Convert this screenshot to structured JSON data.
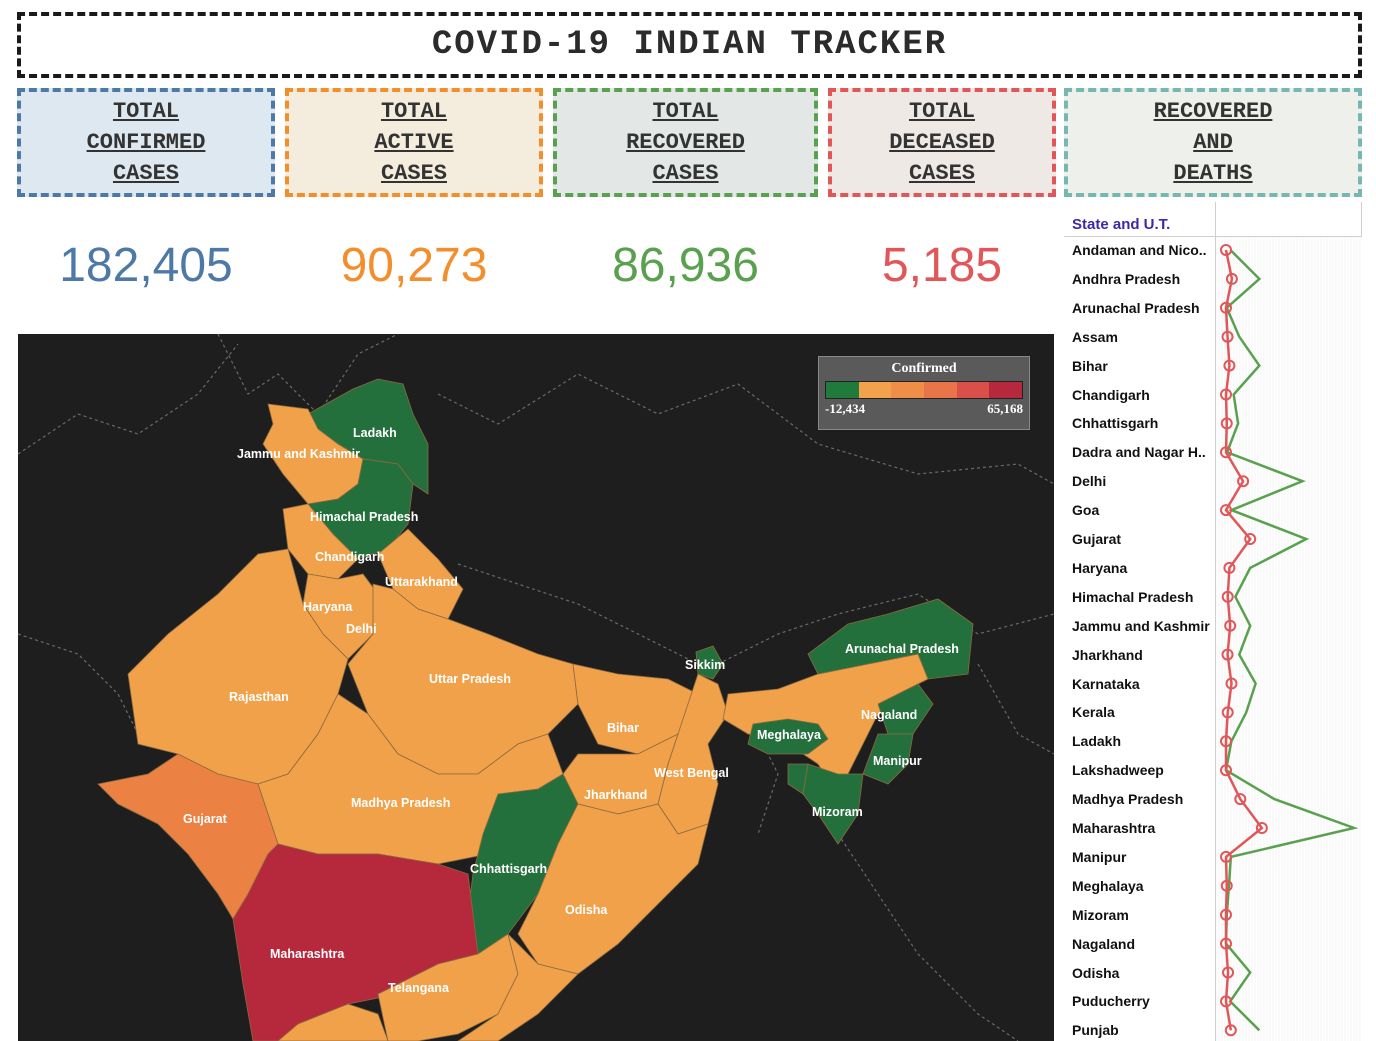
{
  "title": "COVID-19 INDIAN TRACKER",
  "kpis": {
    "confirmed": {
      "label": "TOTAL\nCONFIRMED\nCASES",
      "value": "182,405",
      "color": "#4e79a7"
    },
    "active": {
      "label": "TOTAL\nACTIVE\nCASES",
      "value": "90,273",
      "color": "#f28e2b"
    },
    "recovered": {
      "label": "TOTAL\nRECOVERED\nCASES",
      "value": "86,936",
      "color": "#59a14f"
    },
    "deceased": {
      "label": "TOTAL\nDECEASED\nCASES",
      "value": "5,185",
      "color": "#e15759"
    },
    "recovered_and_deaths": {
      "label": "RECOVERED\nAND\nDEATHS"
    }
  },
  "map": {
    "legend": {
      "title": "Confirmed",
      "min": "-12,434",
      "max": "65,168",
      "colors": [
        "#1f7a3c",
        "#f2a24a",
        "#ef8f47",
        "#e8744a",
        "#d9504a",
        "#b6283c"
      ]
    },
    "labels": {
      "ladakh": "Ladakh",
      "jk": "Jammu and Kashmir",
      "hp": "Himachal Pradesh",
      "chandigarh": "Chandigarh",
      "uttarakhand": "Uttarakhand",
      "haryana": "Haryana",
      "delhi": "Delhi",
      "up": "Uttar Pradesh",
      "rajasthan": "Rajasthan",
      "bihar": "Bihar",
      "sikkim": "Sikkim",
      "arunachal": "Arunachal Pradesh",
      "nagaland": "Nagaland",
      "meghalaya": "Meghalaya",
      "manipur": "Manipur",
      "mizoram": "Mizoram",
      "wb": "West Bengal",
      "jharkhand": "Jharkhand",
      "mp": "Madhya Pradesh",
      "gujarat": "Gujarat",
      "chhattisgarh": "Chhattisgarh",
      "odisha": "Odisha",
      "maharashtra": "Maharashtra",
      "telangana": "Telangana"
    }
  },
  "sidebar": {
    "header": "State and U.T.",
    "states": [
      "Andaman and Nico..",
      "Andhra Pradesh",
      "Arunachal Pradesh",
      "Assam",
      "Bihar",
      "Chandigarh",
      "Chhattisgarh",
      "Dadra and Nagar H..",
      "Delhi",
      "Goa",
      "Gujarat",
      "Haryana",
      "Himachal Pradesh",
      "Jammu and Kashmir",
      "Jharkhand",
      "Karnataka",
      "Kerala",
      "Ladakh",
      "Lakshadweep",
      "Madhya Pradesh",
      "Maharashtra",
      "Manipur",
      "Meghalaya",
      "Mizoram",
      "Nagaland",
      "Odisha",
      "Puducherry",
      "Punjab"
    ],
    "recovered_values": [
      33,
      1900,
      1,
      300,
      1900,
      100,
      250,
      2,
      10000,
      50,
      11000,
      1000,
      150,
      1000,
      300,
      1500,
      700,
      50,
      0,
      4000,
      28000,
      40,
      15,
      1,
      0,
      1000,
      30,
      1900
    ],
    "deaths_values": [
      0,
      60,
      0,
      4,
      20,
      0,
      1,
      0,
      500,
      0,
      1000,
      20,
      5,
      30,
      4,
      52,
      5,
      0,
      0,
      350,
      2200,
      0,
      1,
      0,
      0,
      7,
      0,
      40
    ],
    "line_colors": {
      "recovered": "#59a14f",
      "deaths": "#e15759"
    }
  }
}
